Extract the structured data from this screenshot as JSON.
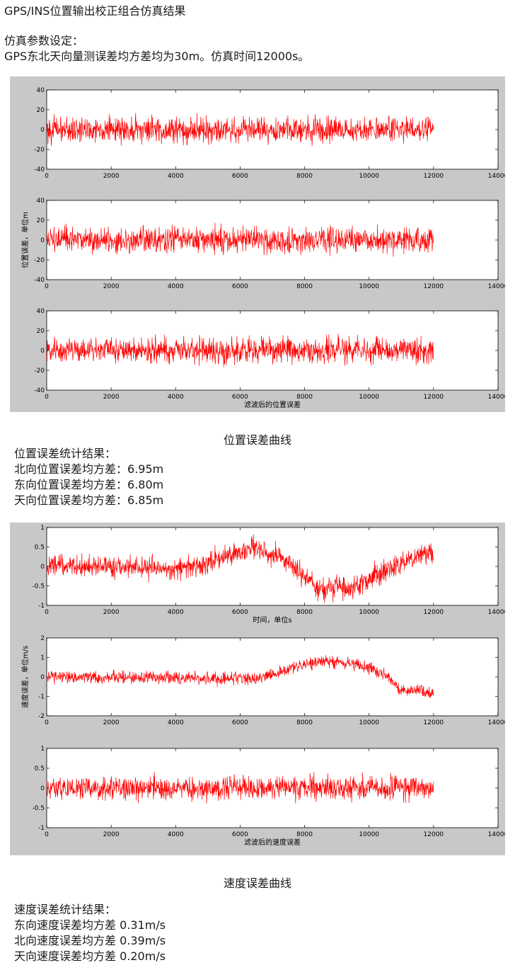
{
  "page": {
    "title": "GPS/INS位置输出校正组合仿真结果",
    "sim_heading": "仿真参数设定：",
    "sim_line": "GPS东北天向量测误差均方差均为30m。仿真时间12000s。"
  },
  "position_section": {
    "caption": "位置误差曲线",
    "stats_heading": "位置误差统计结果：",
    "stats": [
      {
        "label": "北向位置误差均方差：",
        "value": "6.95m"
      },
      {
        "label": "东向位置误差均方差：",
        "value": "6.80m"
      },
      {
        "label": "天向位置误差均方差：",
        "value": "6.85m"
      }
    ]
  },
  "velocity_section": {
    "caption": "速度误差曲线",
    "stats_heading": "速度误差统计结果：",
    "stats": [
      {
        "label": "东向速度误差均方差",
        "value": "0.31m/s"
      },
      {
        "label": "北向速度误差均方差",
        "value": "0.39m/s"
      },
      {
        "label": "天向速度误差均方差",
        "value": "0.20m/s"
      }
    ]
  },
  "colors": {
    "series": "#ff0000",
    "figure_bg": "#c8c8c8",
    "axes_bg": "#ffffff"
  },
  "chart_data": [
    {
      "type": "line",
      "figure": "position",
      "xlim": [
        0,
        14000
      ],
      "xticks": [
        0,
        2000,
        4000,
        6000,
        8000,
        10000,
        12000,
        14000
      ],
      "ylim": [
        -40,
        40
      ],
      "yticks": [
        -40,
        -20,
        0,
        20,
        40
      ],
      "xlabel": "",
      "ylabel": "",
      "data_x_range": [
        0,
        12000
      ],
      "trend": [
        [
          0,
          0
        ],
        [
          12000,
          0
        ]
      ],
      "noise_amplitude": 8,
      "grid": false
    },
    {
      "type": "line",
      "figure": "position",
      "xlim": [
        0,
        14000
      ],
      "xticks": [
        0,
        2000,
        4000,
        6000,
        8000,
        10000,
        12000,
        14000
      ],
      "ylim": [
        -40,
        40
      ],
      "yticks": [
        -40,
        -20,
        0,
        20,
        40
      ],
      "xlabel": "",
      "ylabel": "位置误差，单位m",
      "data_x_range": [
        0,
        12000
      ],
      "trend": [
        [
          0,
          0
        ],
        [
          12000,
          0
        ]
      ],
      "noise_amplitude": 8,
      "grid": false
    },
    {
      "type": "line",
      "figure": "position",
      "xlim": [
        0,
        14000
      ],
      "xticks": [
        0,
        2000,
        4000,
        6000,
        8000,
        10000,
        12000,
        14000
      ],
      "ylim": [
        -40,
        40
      ],
      "yticks": [
        -40,
        -20,
        0,
        20,
        40
      ],
      "xlabel": "滤波后的位置误差",
      "ylabel": "",
      "data_x_range": [
        0,
        12000
      ],
      "trend": [
        [
          0,
          0
        ],
        [
          12000,
          0
        ]
      ],
      "noise_amplitude": 8,
      "grid": false
    },
    {
      "type": "line",
      "figure": "velocity",
      "xlim": [
        0,
        14000
      ],
      "xticks": [
        0,
        2000,
        4000,
        6000,
        8000,
        10000,
        12000,
        14000
      ],
      "ylim": [
        -1,
        1
      ],
      "yticks": [
        -1,
        -0.5,
        0,
        0.5,
        1
      ],
      "xlabel": "时间，单位s",
      "ylabel": "",
      "data_x_range": [
        0,
        12000
      ],
      "trend": [
        [
          0,
          0.05
        ],
        [
          3000,
          0
        ],
        [
          4000,
          -0.1
        ],
        [
          5000,
          0.1
        ],
        [
          6500,
          0.5
        ],
        [
          7500,
          0.1
        ],
        [
          8500,
          -0.6
        ],
        [
          9500,
          -0.5
        ],
        [
          10500,
          -0.1
        ],
        [
          12000,
          0.4
        ]
      ],
      "noise_amplitude": 0.18,
      "grid": false
    },
    {
      "type": "line",
      "figure": "velocity",
      "xlim": [
        0,
        14000
      ],
      "xticks": [
        0,
        2000,
        4000,
        6000,
        8000,
        10000,
        12000,
        14000
      ],
      "ylim": [
        -2,
        2
      ],
      "yticks": [
        -2,
        -1,
        0,
        1,
        2
      ],
      "xlabel": "",
      "ylabel": "速度误差，单位m/s",
      "data_x_range": [
        0,
        12000
      ],
      "trend": [
        [
          0,
          0
        ],
        [
          6500,
          -0.1
        ],
        [
          7500,
          0.4
        ],
        [
          8500,
          0.8
        ],
        [
          9500,
          0.7
        ],
        [
          10500,
          0.1
        ],
        [
          11000,
          -0.7
        ],
        [
          12000,
          -0.8
        ]
      ],
      "noise_amplitude": 0.2,
      "grid": false
    },
    {
      "type": "line",
      "figure": "velocity",
      "xlim": [
        0,
        14000
      ],
      "xticks": [
        0,
        2000,
        4000,
        6000,
        8000,
        10000,
        12000,
        14000
      ],
      "ylim": [
        -1,
        1
      ],
      "yticks": [
        -1,
        -0.5,
        0,
        0.5,
        1
      ],
      "xlabel": "滤波后的速度误差",
      "ylabel": "",
      "data_x_range": [
        0,
        12000
      ],
      "trend": [
        [
          0,
          0
        ],
        [
          12000,
          0
        ]
      ],
      "noise_amplitude": 0.18,
      "grid": false
    }
  ]
}
